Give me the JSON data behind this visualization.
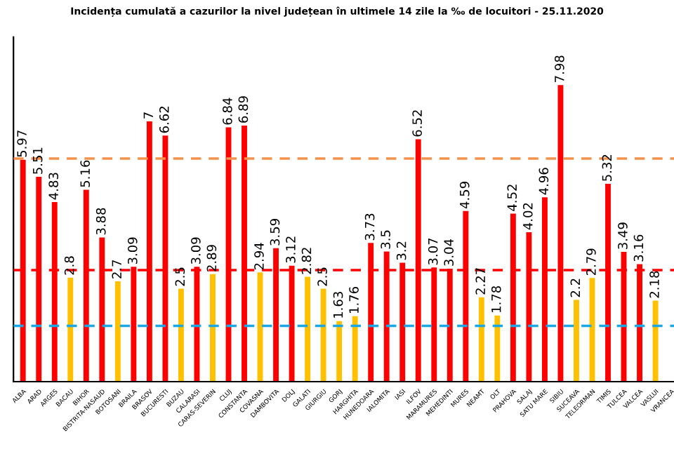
{
  "chart_data": {
    "type": "bar",
    "title": "Incidența cumulată a cazurilor la nivel județean în ultimele 14 zile la ‰ de locuitori - 25.11.2020",
    "categories": [
      "ALBA",
      "ARAD",
      "ARGES",
      "BACAU",
      "BIHOR",
      "BISTRITA-NASAUD",
      "BOTOSANI",
      "BRAILA",
      "BRASOV",
      "BUCURESTI",
      "BUZAU",
      "CALARASI",
      "CARAS-SEVERIN",
      "CLUJ",
      "CONSTANTA",
      "COVASNA",
      "DAMBOVITA",
      "DOLJ",
      "GALATI",
      "GIURGIU",
      "GORJ",
      "HARGHITA",
      "HUNEDOARA",
      "IALOMITA",
      "IASI",
      "ILFOV",
      "MARAMURES",
      "MEHEDINTI",
      "MURES",
      "NEAMT",
      "OLT",
      "PRAHOVA",
      "SALAJ",
      "SATU MARE",
      "SIBIU",
      "SUCEAVA",
      "TELEORMAN",
      "TIMIS",
      "TULCEA",
      "VALCEA",
      "VASLUI",
      "VRANCEA"
    ],
    "values": [
      5.97,
      5.51,
      4.83,
      2.8,
      5.16,
      3.88,
      2.7,
      3.09,
      7,
      6.62,
      2.5,
      3.09,
      2.89,
      6.84,
      6.89,
      2.94,
      3.59,
      3.12,
      2.82,
      2.5,
      1.63,
      1.76,
      3.73,
      3.5,
      3.2,
      6.52,
      3.07,
      3.04,
      4.59,
      2.27,
      1.78,
      4.52,
      4.02,
      4.96,
      7.98,
      2.2,
      2.79,
      5.32,
      3.49,
      3.16,
      2.18,
      null
    ],
    "colors": [
      "#ff0000",
      "#ff0000",
      "#ff0000",
      "#ffc000",
      "#ff0000",
      "#ff0000",
      "#ffc000",
      "#ff0000",
      "#ff0000",
      "#ff0000",
      "#ffc000",
      "#ff0000",
      "#ffc000",
      "#ff0000",
      "#ff0000",
      "#ffc000",
      "#ff0000",
      "#ff0000",
      "#ffc000",
      "#ffc000",
      "#ffc000",
      "#ffc000",
      "#ff0000",
      "#ff0000",
      "#ff0000",
      "#ff0000",
      "#ff0000",
      "#ff0000",
      "#ff0000",
      "#ffc000",
      "#ffc000",
      "#ff0000",
      "#ff0000",
      "#ff0000",
      "#ff0000",
      "#ffc000",
      "#ffc000",
      "#ff0000",
      "#ff0000",
      "#ff0000",
      "#ffc000",
      "#ff0000"
    ],
    "ylim": [
      0,
      9.3
    ],
    "tick_labels": "x",
    "data_labels": true,
    "grid": false,
    "ref_lines": [
      {
        "axis": "y",
        "value": 6,
        "color": "#f4914a",
        "line_style": "dashed"
      },
      {
        "axis": "y",
        "value": 3,
        "color": "#ff0000",
        "line_style": "dashed"
      },
      {
        "axis": "y",
        "value": 1.5,
        "color": "#1aa7e6",
        "line_style": "dashed"
      }
    ]
  }
}
